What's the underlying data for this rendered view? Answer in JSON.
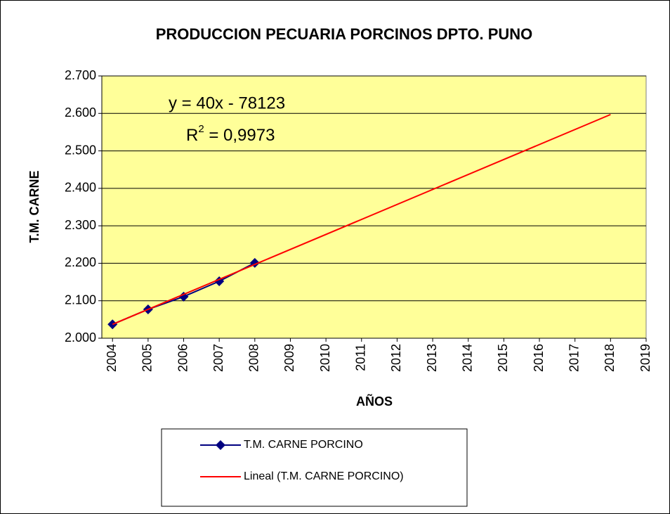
{
  "chart_data": {
    "type": "line",
    "title": "PRODUCCION PECUARIA PORCINOS DPTO. PUNO",
    "x_label": "AÑOS",
    "y_label": "T.M. CARNE",
    "series": [
      {
        "name": "T.M. CARNE PORCINO",
        "color": "#000080",
        "marker": "diamond",
        "x": [
          2004,
          2005,
          2006,
          2007,
          2008
        ],
        "values": [
          2037,
          2077,
          2111,
          2152,
          2201
        ]
      },
      {
        "name": "Lineal (T.M. CARNE PORCINO)",
        "color": "#ff0000",
        "x": [
          2004,
          2018
        ],
        "values": [
          2037,
          2597
        ]
      }
    ],
    "equation": "y = 40x - 78123",
    "r_squared": {
      "base": "R",
      "sup": "2",
      "rest": " = 0,9973"
    },
    "xlim": [
      2003.7,
      2019
    ],
    "xticks": [
      2004,
      2005,
      2006,
      2007,
      2008,
      2009,
      2010,
      2011,
      2012,
      2013,
      2014,
      2015,
      2016,
      2017,
      2018,
      2019
    ],
    "ylim": [
      2000,
      2700
    ],
    "yticks": [
      {
        "value": 2000,
        "label": "2.000"
      },
      {
        "value": 2100,
        "label": "2.100"
      },
      {
        "value": 2200,
        "label": "2.200"
      },
      {
        "value": 2300,
        "label": "2.300"
      },
      {
        "value": 2400,
        "label": "2.400"
      },
      {
        "value": 2500,
        "label": "2.500"
      },
      {
        "value": 2600,
        "label": "2.600"
      },
      {
        "value": 2700,
        "label": "2.700"
      }
    ],
    "grid": true,
    "plot_background": "#ffff99"
  }
}
